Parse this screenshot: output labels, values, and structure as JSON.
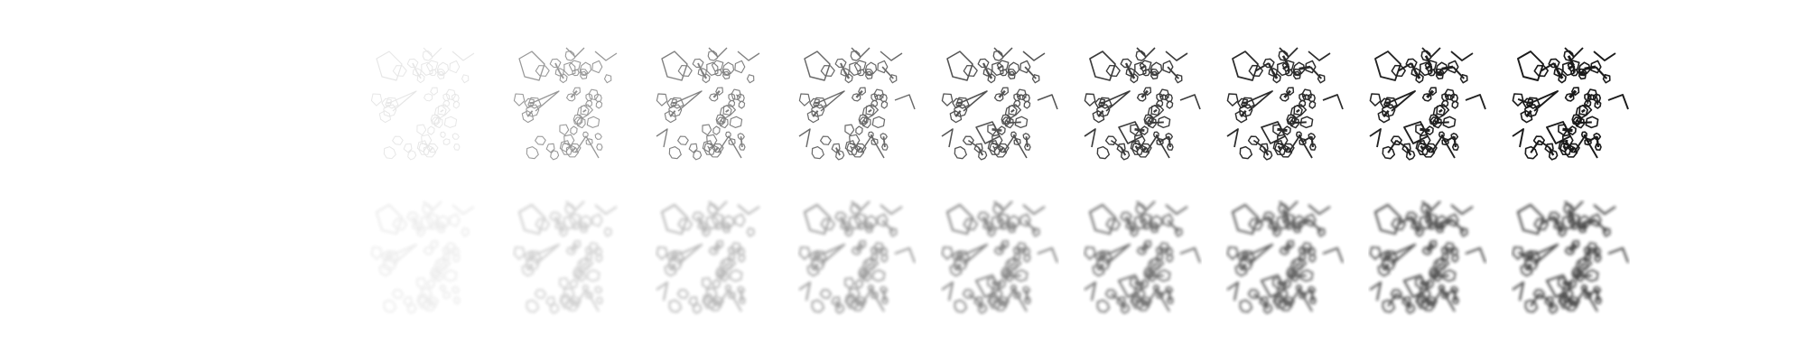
{
  "figure": {
    "rows": [
      {
        "name": "sharp",
        "opacities": [
          0.0,
          0.1,
          0.45,
          0.55,
          0.65,
          0.75,
          0.85,
          0.92,
          0.97,
          1.0
        ],
        "blur": 0
      },
      {
        "name": "blurred",
        "opacities": [
          0.0,
          0.08,
          0.2,
          0.3,
          0.42,
          0.52,
          0.62,
          0.7,
          0.76,
          0.8
        ],
        "blur": 1.6
      }
    ],
    "colors": {
      "background": "#ffffff",
      "stroke": "#1a1a1a"
    }
  }
}
